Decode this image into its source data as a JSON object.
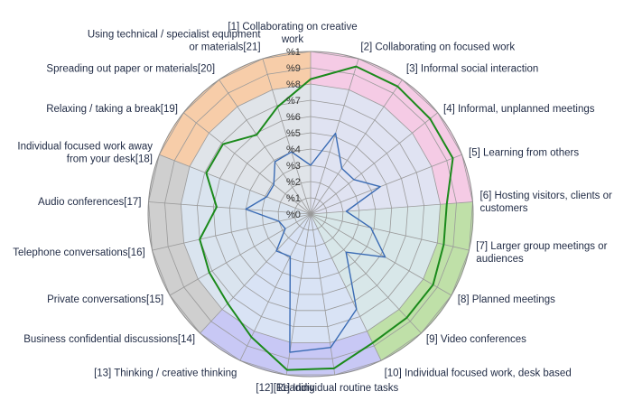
{
  "chart_data": {
    "type": "radar",
    "title": "",
    "categories": [
      "[1] Collaborating on creative work",
      "[2] Collaborating on focused work",
      "[3] Informal social interaction",
      "[4] Informal, unplanned meetings",
      "[5] Learning from others",
      "[6] Hosting visitors, clients or customers",
      "[7] Larger group meetings or audiences",
      "[8] Planned meetings",
      "[9] Video conferences",
      "[10] Individual focused work, desk based",
      "[11] Individual routine tasks",
      "[12] Reading",
      "[13] Thinking / creative thinking",
      "[14] Business confidential discussions",
      "[15] Private conversations",
      "[16] Telephone conversations",
      "[17] Audio conferences",
      "[18] Individual focused work away from your desk",
      "[19] Relaxing / taking a break",
      "[20] Spreading out paper or materials",
      "[21] Using technical / specialist equipment or materials"
    ],
    "ticks": [
      "%0",
      "%1",
      "%2",
      "%3",
      "%4",
      "%5",
      "%6",
      "%7",
      "%8",
      "%9",
      "%1"
    ],
    "rlim": [
      0,
      100
    ],
    "grid": true,
    "legend": "none",
    "series": [
      {
        "color": "#1b8a1b",
        "values": [
          83,
          95,
          95,
          94,
          94,
          84,
          84,
          87,
          87,
          88,
          96,
          97,
          84,
          75,
          72,
          70,
          58,
          69,
          69,
          59,
          69
        ]
      },
      {
        "color": "#3a6bb4",
        "values": [
          30,
          52,
          34,
          34,
          46,
          22,
          38,
          53,
          32,
          65,
          83,
          86,
          29,
          31,
          18,
          20,
          40,
          29,
          29,
          39,
          40
        ]
      }
    ],
    "sectors": [
      {
        "from": 0,
        "to": 5,
        "color": "#f5cbe5"
      },
      {
        "from": 5,
        "to": 9,
        "color": "#bfe0a8"
      },
      {
        "from": 9,
        "to": 13,
        "color": "#c8c8f5"
      },
      {
        "from": 13,
        "to": 17,
        "color": "#cfcfcf"
      },
      {
        "from": 17,
        "to": 21,
        "color": "#f7cda9"
      }
    ]
  }
}
